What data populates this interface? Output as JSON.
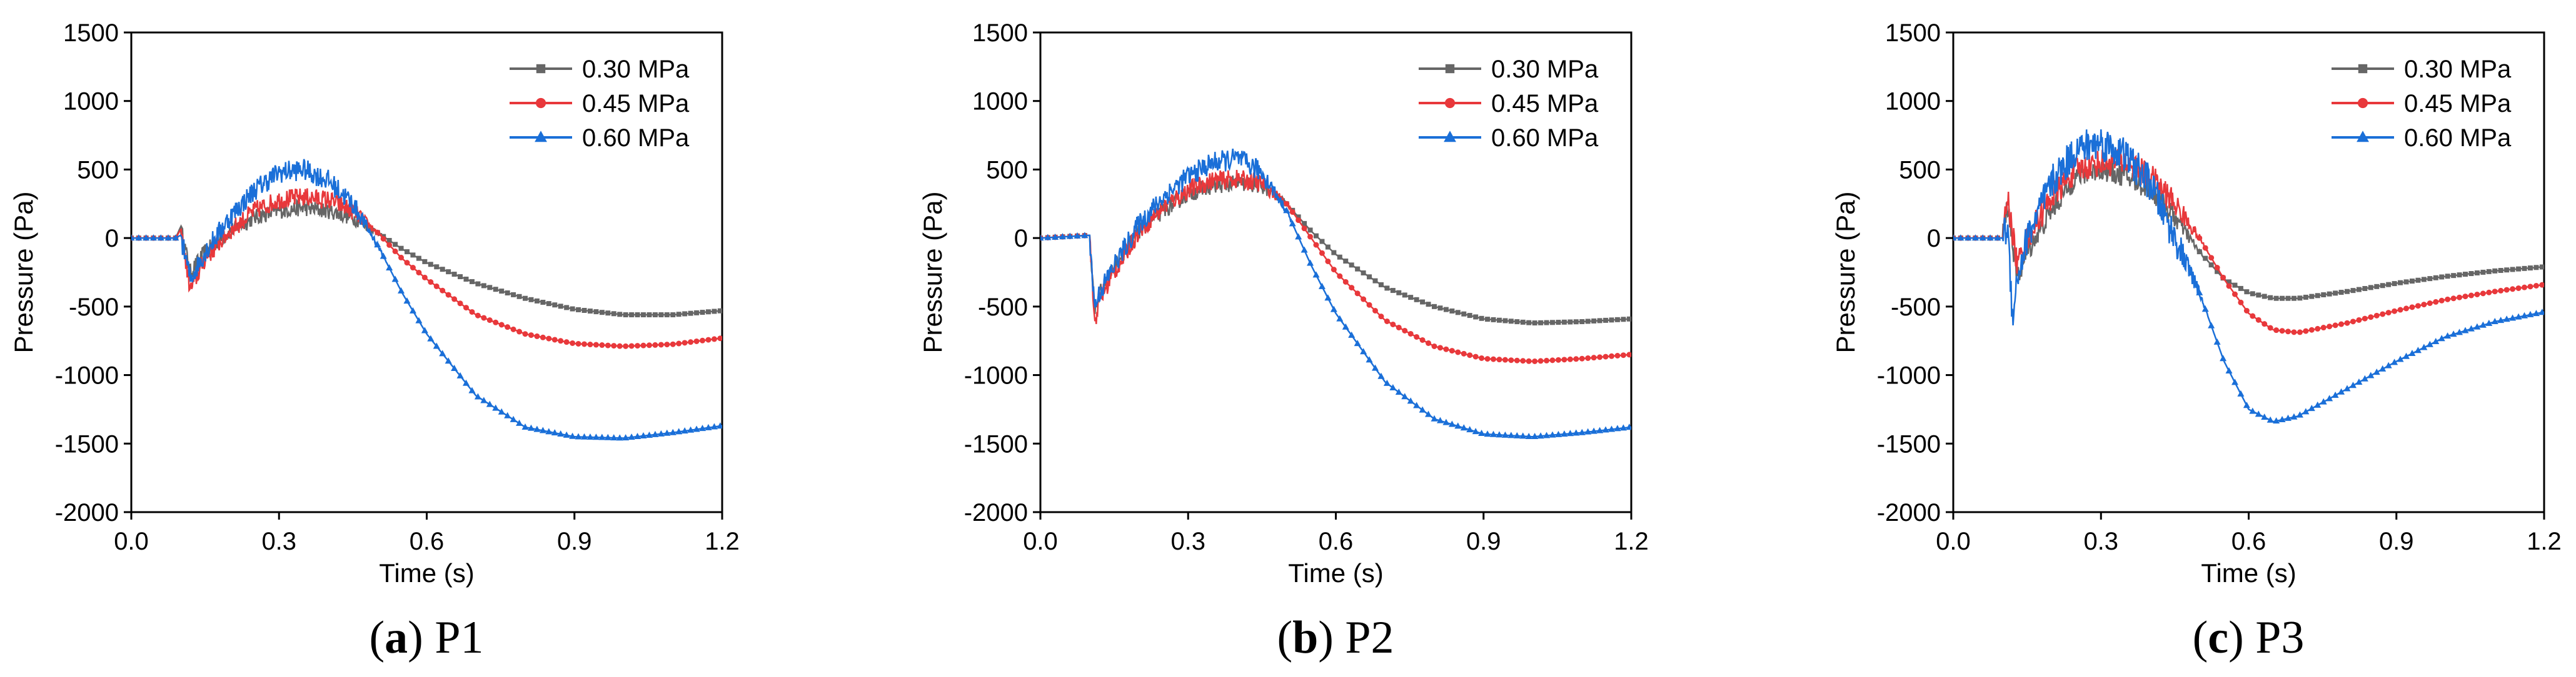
{
  "chart_data": [
    {
      "type": "line",
      "caption_letter": "a",
      "caption_text": "P1",
      "xlabel": "Time (s)",
      "ylabel": "Pressure (Pa)",
      "xlim": [
        0,
        1.2
      ],
      "ylim": [
        -2000,
        1500
      ],
      "xticks": [
        "0.0",
        "0.3",
        "0.6",
        "0.9",
        "1.2"
      ],
      "yticks": [
        "-2000",
        "-1500",
        "-1000",
        "-500",
        "0",
        "500",
        "1000",
        "1500"
      ],
      "legend": "top-right",
      "series": [
        {
          "name": "0.30 MPa",
          "color": "#666666",
          "marker": "square",
          "noise": 60,
          "x": [
            0,
            0.09,
            0.1,
            0.12,
            0.15,
            0.2,
            0.25,
            0.3,
            0.35,
            0.4,
            0.45,
            0.5,
            0.55,
            0.6,
            0.7,
            0.8,
            0.9,
            1.0,
            1.1,
            1.2
          ],
          "y": [
            0,
            0,
            80,
            -250,
            -100,
            50,
            150,
            200,
            220,
            200,
            150,
            40,
            -80,
            -180,
            -330,
            -440,
            -520,
            -560,
            -560,
            -530
          ]
        },
        {
          "name": "0.45 MPa",
          "color": "#e8383b",
          "marker": "circle",
          "noise": 70,
          "x": [
            0,
            0.09,
            0.1,
            0.12,
            0.15,
            0.2,
            0.25,
            0.3,
            0.35,
            0.4,
            0.45,
            0.5,
            0.55,
            0.6,
            0.7,
            0.8,
            0.9,
            1.0,
            1.1,
            1.2
          ],
          "y": [
            0,
            0,
            60,
            -380,
            -150,
            50,
            200,
            280,
            300,
            280,
            200,
            40,
            -150,
            -300,
            -560,
            -700,
            -770,
            -790,
            -775,
            -730
          ]
        },
        {
          "name": "0.60 MPa",
          "color": "#1a6fd8",
          "marker": "triangle",
          "noise": 80,
          "x": [
            0,
            0.09,
            0.1,
            0.12,
            0.15,
            0.2,
            0.25,
            0.3,
            0.35,
            0.4,
            0.45,
            0.5,
            0.55,
            0.6,
            0.7,
            0.8,
            0.9,
            1.0,
            1.1,
            1.2
          ],
          "y": [
            0,
            0,
            20,
            -300,
            -100,
            150,
            350,
            480,
            500,
            420,
            250,
            -50,
            -400,
            -700,
            -1150,
            -1380,
            -1450,
            -1460,
            -1420,
            -1370
          ]
        }
      ]
    },
    {
      "type": "line",
      "caption_letter": "b",
      "caption_text": "P2",
      "xlabel": "Time (s)",
      "ylabel": "Pressure (Pa)",
      "xlim": [
        0,
        1.2
      ],
      "ylim": [
        -2000,
        1500
      ],
      "xticks": [
        "0.0",
        "0.3",
        "0.6",
        "0.9",
        "1.2"
      ],
      "yticks": [
        "-2000",
        "-1500",
        "-1000",
        "-500",
        "0",
        "500",
        "1000",
        "1500"
      ],
      "legend": "top-right",
      "series": [
        {
          "name": "0.30 MPa",
          "color": "#666666",
          "marker": "square",
          "noise": 60,
          "x": [
            0,
            0.1,
            0.11,
            0.12,
            0.15,
            0.2,
            0.25,
            0.3,
            0.35,
            0.4,
            0.45,
            0.5,
            0.55,
            0.6,
            0.7,
            0.8,
            0.9,
            1.0,
            1.1,
            1.2
          ],
          "y": [
            0,
            20,
            -550,
            -400,
            -200,
            50,
            200,
            320,
            380,
            400,
            380,
            250,
            50,
            -120,
            -360,
            -500,
            -590,
            -620,
            -610,
            -590
          ]
        },
        {
          "name": "0.45 MPa",
          "color": "#e8383b",
          "marker": "circle",
          "noise": 70,
          "x": [
            0,
            0.1,
            0.11,
            0.12,
            0.15,
            0.2,
            0.25,
            0.3,
            0.35,
            0.4,
            0.45,
            0.5,
            0.55,
            0.6,
            0.7,
            0.8,
            0.9,
            1.0,
            1.1,
            1.2
          ],
          "y": [
            0,
            20,
            -620,
            -450,
            -250,
            50,
            230,
            350,
            420,
            430,
            400,
            250,
            0,
            -250,
            -600,
            -790,
            -880,
            -900,
            -880,
            -850
          ]
        },
        {
          "name": "0.60 MPa",
          "color": "#1a6fd8",
          "marker": "triangle",
          "noise": 80,
          "x": [
            0,
            0.1,
            0.11,
            0.12,
            0.15,
            0.2,
            0.25,
            0.3,
            0.35,
            0.4,
            0.45,
            0.5,
            0.55,
            0.6,
            0.7,
            0.8,
            0.9,
            1.0,
            1.1,
            1.2
          ],
          "y": [
            0,
            20,
            -500,
            -400,
            -200,
            100,
            300,
            450,
            550,
            580,
            480,
            200,
            -200,
            -550,
            -1050,
            -1320,
            -1430,
            -1450,
            -1420,
            -1380
          ]
        }
      ]
    },
    {
      "type": "line",
      "caption_letter": "c",
      "caption_text": "P3",
      "xlabel": "Time (s)",
      "ylabel": "Pressure (Pa)",
      "xlim": [
        0,
        1.2
      ],
      "ylim": [
        -2000,
        1500
      ],
      "xticks": [
        "0.0",
        "0.3",
        "0.6",
        "0.9",
        "1.2"
      ],
      "yticks": [
        "-2000",
        "-1500",
        "-1000",
        "-500",
        "0",
        "500",
        "1000",
        "1500"
      ],
      "legend": "top-right",
      "series": [
        {
          "name": "0.30 MPa",
          "color": "#666666",
          "marker": "square",
          "noise": 80,
          "x": [
            0,
            0.1,
            0.11,
            0.13,
            0.15,
            0.2,
            0.25,
            0.3,
            0.35,
            0.4,
            0.45,
            0.5,
            0.55,
            0.6,
            0.65,
            0.7,
            0.8,
            0.9,
            1.0,
            1.1,
            1.2
          ],
          "y": [
            0,
            0,
            250,
            -300,
            -100,
            200,
            450,
            500,
            450,
            350,
            150,
            -100,
            -300,
            -400,
            -440,
            -440,
            -390,
            -330,
            -280,
            -240,
            -210
          ]
        },
        {
          "name": "0.45 MPa",
          "color": "#e8383b",
          "marker": "circle",
          "noise": 100,
          "x": [
            0,
            0.1,
            0.11,
            0.13,
            0.15,
            0.2,
            0.25,
            0.3,
            0.35,
            0.4,
            0.45,
            0.5,
            0.55,
            0.6,
            0.65,
            0.7,
            0.8,
            0.9,
            1.0,
            1.1,
            1.2
          ],
          "y": [
            0,
            0,
            300,
            -200,
            0,
            300,
            500,
            550,
            550,
            450,
            250,
            0,
            -300,
            -550,
            -670,
            -690,
            -620,
            -530,
            -450,
            -390,
            -340
          ]
        },
        {
          "name": "0.60 MPa",
          "color": "#1a6fd8",
          "marker": "triangle",
          "noise": 130,
          "x": [
            0,
            0.1,
            0.11,
            0.12,
            0.13,
            0.15,
            0.2,
            0.25,
            0.3,
            0.35,
            0.4,
            0.45,
            0.5,
            0.55,
            0.6,
            0.65,
            0.7,
            0.8,
            0.9,
            1.0,
            1.1,
            1.2
          ],
          "y": [
            0,
            0,
            100,
            -550,
            -300,
            0,
            400,
            650,
            700,
            600,
            400,
            0,
            -400,
            -900,
            -1250,
            -1340,
            -1300,
            -1100,
            -900,
            -720,
            -610,
            -540
          ]
        }
      ]
    }
  ]
}
